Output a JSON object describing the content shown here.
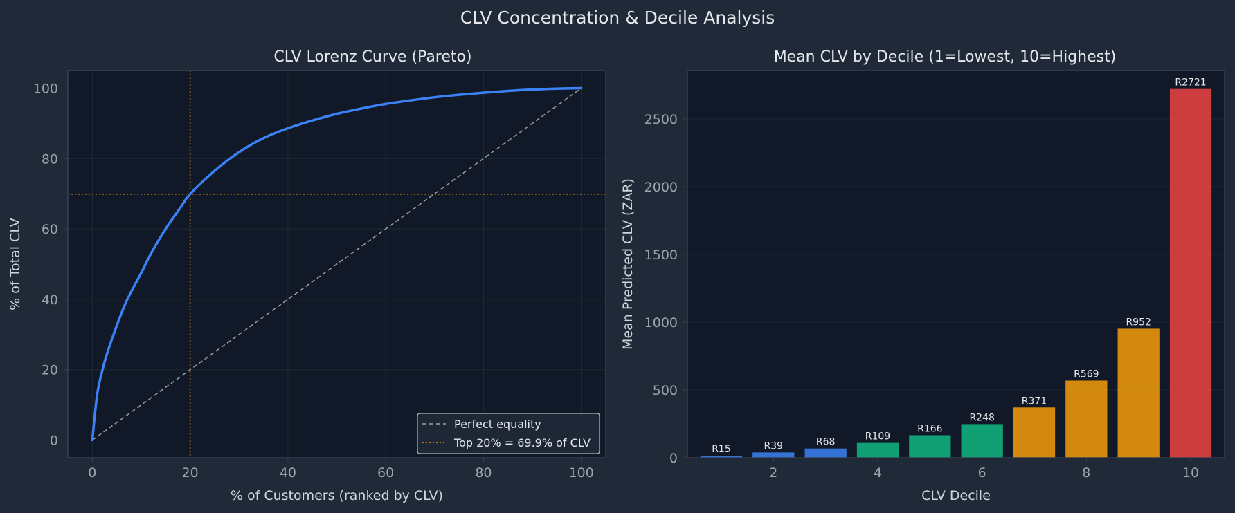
{
  "figure": {
    "title": "CLV Concentration & Decile Analysis",
    "colors": {
      "figure_bg": "#1f2937",
      "axes_bg": "#111827",
      "spine": "#374151",
      "grid": "#1f2937",
      "text": "#e5e7eb",
      "tick": "#9ca3af",
      "accent_blue": "#3b82f6",
      "orange": "#f59e0b",
      "equality_line": "#9ca3af"
    }
  },
  "chart_data": [
    {
      "type": "line",
      "title": "CLV Lorenz Curve (Pareto)",
      "xlabel": "% of Customers (ranked by CLV)",
      "ylabel": "% of Total CLV",
      "xlim": [
        -5,
        105
      ],
      "ylim": [
        -5,
        105
      ],
      "xticks": [
        0,
        20,
        40,
        60,
        80,
        100
      ],
      "yticks": [
        0,
        20,
        40,
        60,
        80,
        100
      ],
      "grid": true,
      "legend_position": "bottom-right",
      "series": [
        {
          "name": "",
          "style": "solid",
          "color": "#3b82f6",
          "x": [
            0,
            1,
            2,
            3,
            5,
            7,
            10,
            12,
            15,
            18,
            20,
            25,
            30,
            35,
            40,
            45,
            50,
            55,
            60,
            65,
            70,
            75,
            80,
            85,
            90,
            95,
            100
          ],
          "y": [
            0,
            13.0,
            19.5,
            24.5,
            32.5,
            39.5,
            47.5,
            53.0,
            60.0,
            66.0,
            69.9,
            76.5,
            81.8,
            85.8,
            88.6,
            90.8,
            92.7,
            94.2,
            95.5,
            96.5,
            97.4,
            98.1,
            98.7,
            99.2,
            99.6,
            99.85,
            100
          ]
        },
        {
          "name": "Perfect equality",
          "style": "dashed",
          "color": "#9ca3af",
          "x": [
            0,
            100
          ],
          "y": [
            0,
            100
          ]
        }
      ],
      "reference_lines": [
        {
          "orientation": "vertical",
          "value": 20,
          "style": "dotted",
          "color": "#f59e0b"
        },
        {
          "orientation": "horizontal",
          "value": 69.9,
          "style": "dotted",
          "color": "#f59e0b",
          "legend": "Top 20% = 69.9% of CLV"
        }
      ]
    },
    {
      "type": "bar",
      "title": "Mean CLV by Decile (1=Lowest, 10=Highest)",
      "xlabel": "CLV Decile",
      "ylabel": "Mean Predicted CLV (ZAR)",
      "categories": [
        1,
        2,
        3,
        4,
        5,
        6,
        7,
        8,
        9,
        10
      ],
      "values": [
        15,
        39,
        68,
        109,
        166,
        248,
        371,
        569,
        952,
        2721
      ],
      "data_labels": [
        "R15",
        "R39",
        "R68",
        "R109",
        "R166",
        "R248",
        "R371",
        "R569",
        "R952",
        "R2721"
      ],
      "bar_colors": [
        "#3b82f6",
        "#3b82f6",
        "#3b82f6",
        "#10b981",
        "#10b981",
        "#10b981",
        "#f59e0b",
        "#f59e0b",
        "#f59e0b",
        "#ef4444"
      ],
      "xlim": [
        0.35,
        10.65
      ],
      "ylim": [
        0,
        2857
      ],
      "xticks": [
        2,
        4,
        6,
        8,
        10
      ],
      "yticks": [
        0,
        500,
        1000,
        1500,
        2000,
        2500
      ],
      "grid": true
    }
  ]
}
